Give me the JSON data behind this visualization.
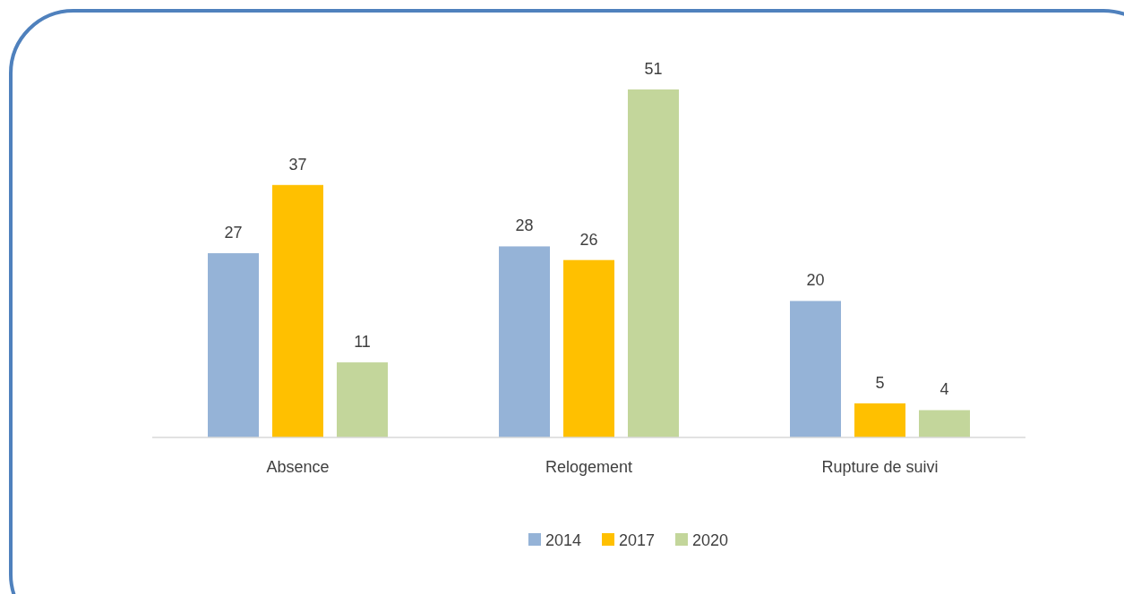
{
  "chart_data": {
    "type": "bar",
    "categories": [
      "Absence",
      "Relogement",
      "Rupture de suivi"
    ],
    "series": [
      {
        "name": "2014",
        "color": "#95b3d7",
        "values": [
          27,
          28,
          20
        ]
      },
      {
        "name": "2017",
        "color": "#ffc000",
        "values": [
          37,
          26,
          5
        ]
      },
      {
        "name": "2020",
        "color": "#c3d69b",
        "values": [
          11,
          51,
          4
        ]
      }
    ],
    "data_labels": true,
    "legend": "bottom",
    "grid": false
  }
}
